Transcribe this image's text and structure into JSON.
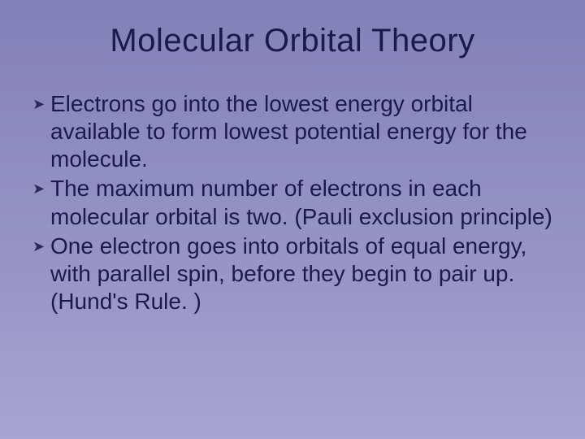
{
  "slide": {
    "title": "Molecular Orbital Theory",
    "bullets": [
      "Electrons go into the lowest energy orbital available to form lowest potential energy for the molecule.",
      "The maximum number of electrons in each molecular orbital is two. (Pauli exclusion principle)",
      "One electron goes into orbitals of equal energy, with parallel spin, before they begin to pair up. (Hund's Rule. )"
    ],
    "style": {
      "background_gradient": [
        "#8380b8",
        "#8f8cc0",
        "#9b98c8",
        "#a8a5d0"
      ],
      "title_color": "#1a1a4d",
      "title_fontsize": 40,
      "body_color": "#1a1a4d",
      "body_fontsize": 28,
      "bullet_marker": "➤",
      "bullet_marker_color": "#2a2a5a",
      "font_family": "Arial"
    }
  }
}
